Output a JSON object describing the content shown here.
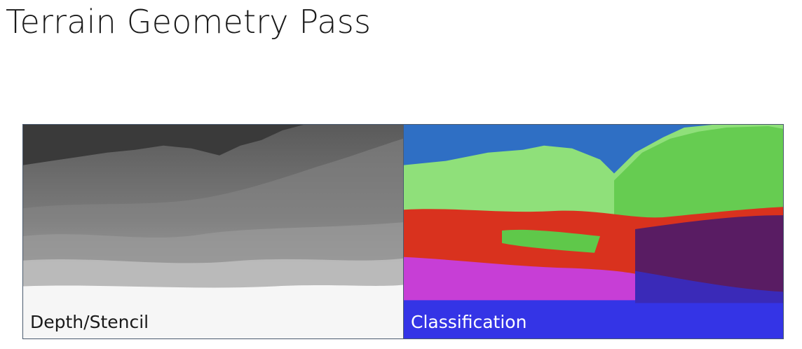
{
  "slide": {
    "title": "Terrain Geometry Pass"
  },
  "panels": [
    {
      "id": "depth",
      "label": "Depth/Stencil"
    },
    {
      "id": "classification",
      "label": "Classification"
    }
  ],
  "colors": {
    "sky_depth": "#3a3a3a",
    "sky_classification": "#2f6fc4",
    "class_green": "#8fe07a",
    "class_red": "#d9321e",
    "class_magenta": "#c73ed6",
    "class_blue": "#3434e6"
  }
}
